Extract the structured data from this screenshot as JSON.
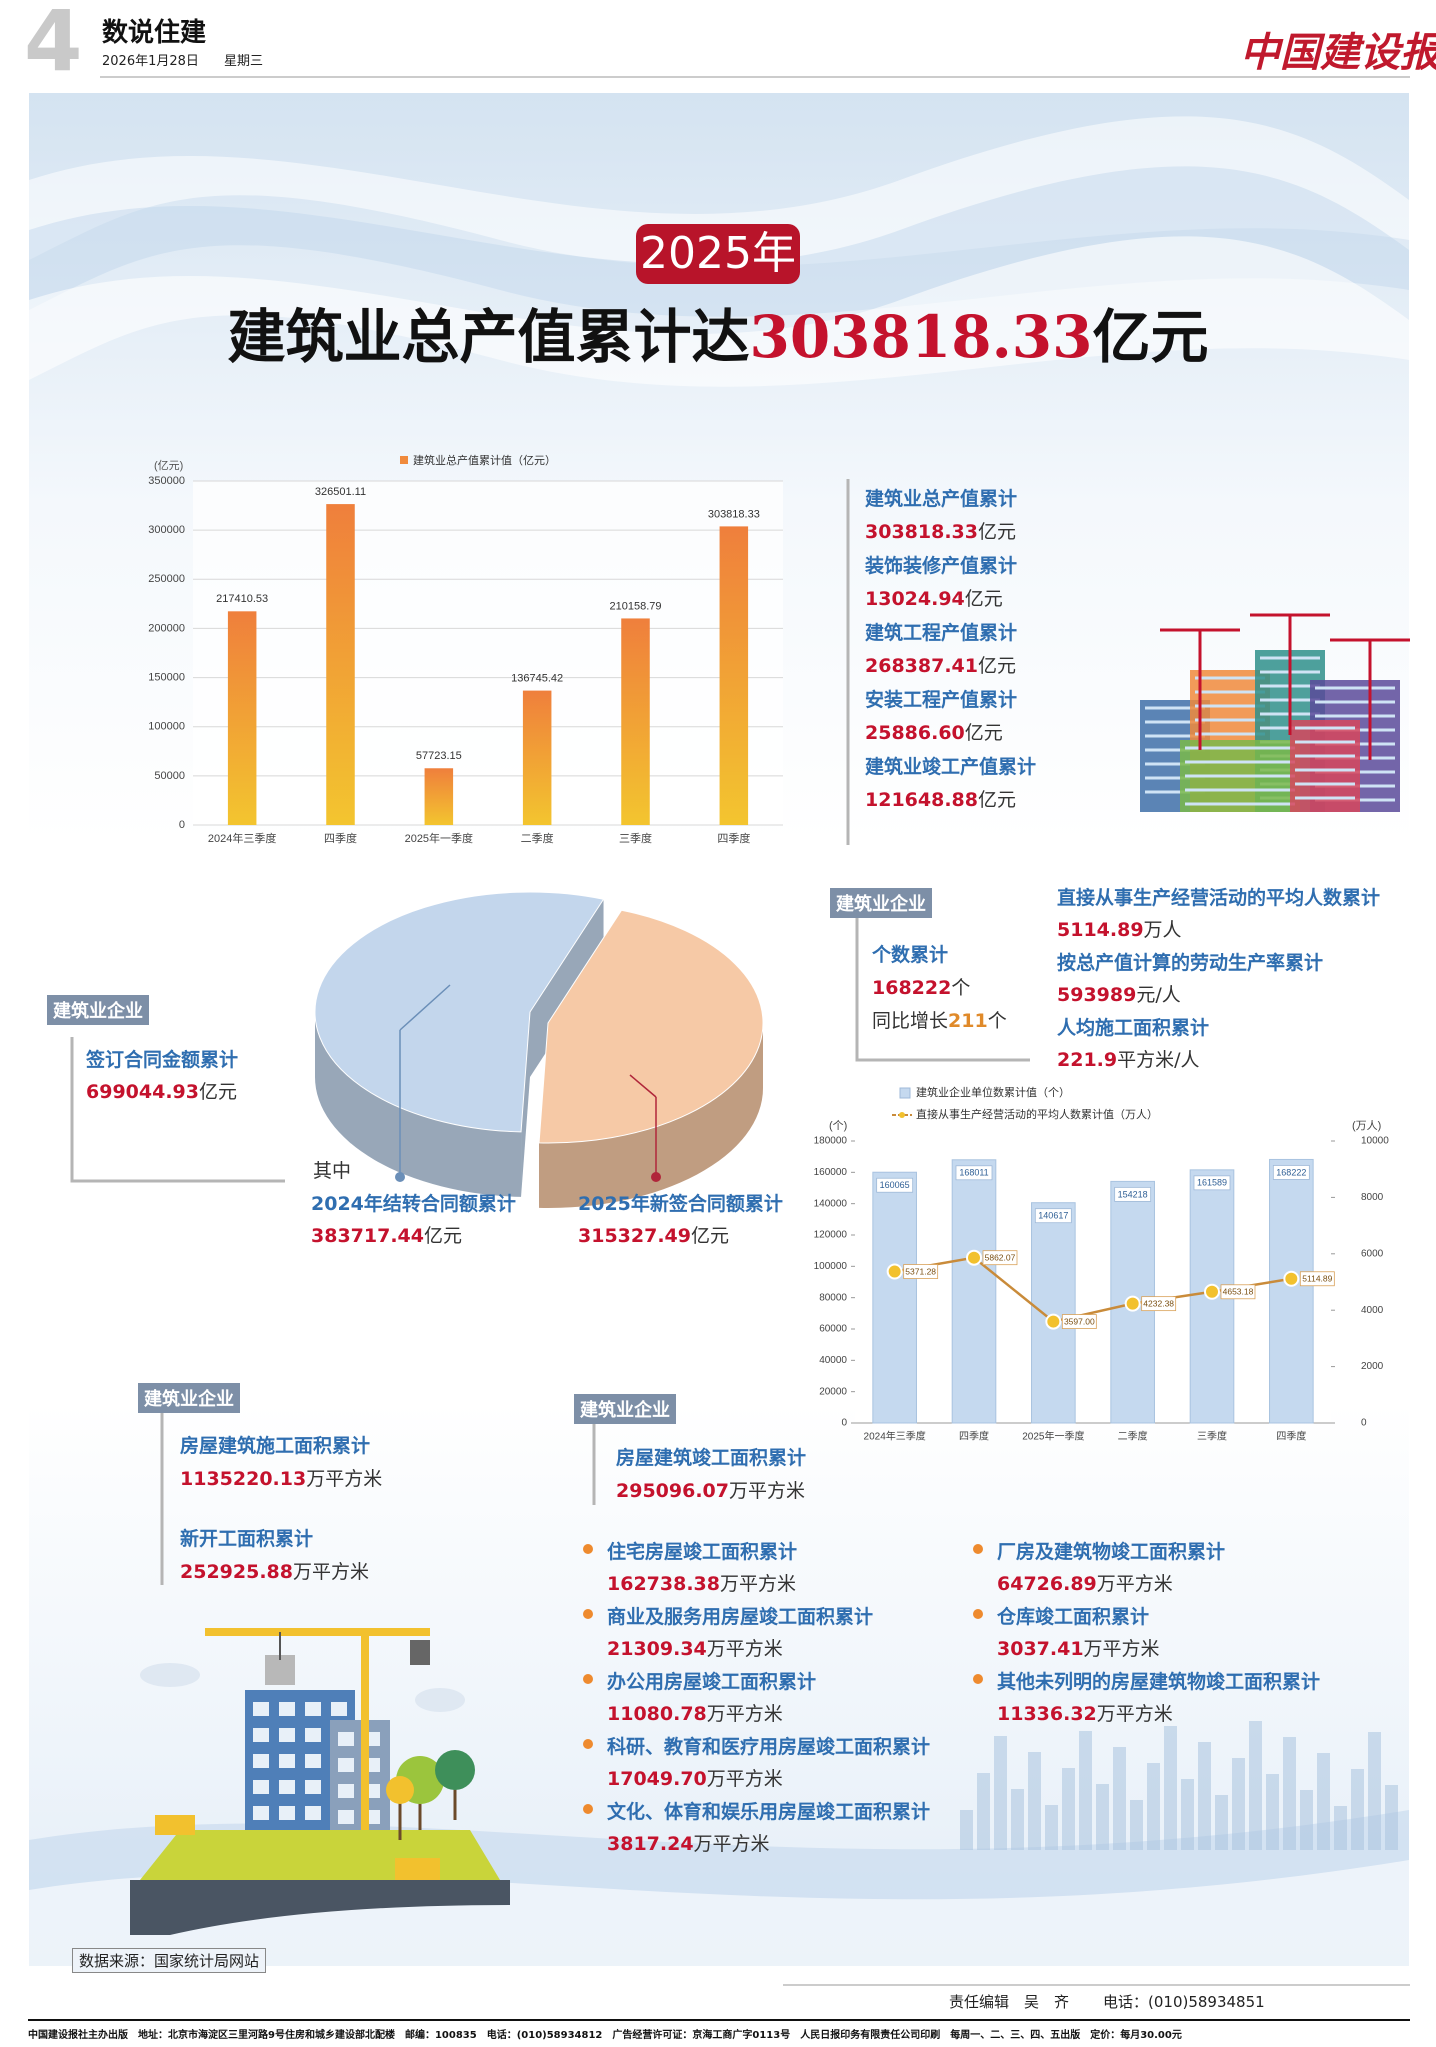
{
  "header": {
    "page_number": "4",
    "section": "数说住建",
    "date": "2026年1月28日",
    "weekday": "星期三",
    "masthead": "中国建设报"
  },
  "headline": {
    "badge": "2025年",
    "text": "建筑业总产值累计达",
    "highlight": "303818.33",
    "unit": "亿元"
  },
  "chart_data": [
    {
      "type": "bar",
      "y_label": "(亿元)",
      "categories": [
        "2024年三季度",
        "四季度",
        "2025年一季度",
        "二季度",
        "三季度",
        "四季度"
      ],
      "series": [
        {
          "name": "建筑业总产值累计值（亿元）",
          "color": "#f08a3c",
          "values": [
            217410.53,
            326501.11,
            57723.15,
            136745.42,
            210158.79,
            303818.33
          ]
        }
      ],
      "ylim": [
        0,
        350000
      ],
      "yticks": [
        0,
        50000,
        100000,
        150000,
        200000,
        250000,
        300000,
        350000
      ],
      "grid": true
    },
    {
      "type": "pie",
      "annotation": "其中",
      "labels": [
        "2024年结转合同额累计",
        "2025年新签合同额累计"
      ],
      "values": [
        383717.44,
        315327.49
      ],
      "unit": "亿元",
      "colors": [
        "#c3d6ec",
        "#f6c9a6"
      ]
    },
    {
      "type": "bar-line",
      "y_label": "(个)",
      "y2_label": "(万人)",
      "categories": [
        "2024年三季度",
        "四季度",
        "2025年一季度",
        "二季度",
        "三季度",
        "四季度"
      ],
      "series": [
        {
          "name": "建筑业企业单位数累计值（个）",
          "color": "#c5d9ef",
          "values": [
            160065,
            168011,
            140617,
            154218,
            161589,
            168222
          ]
        },
        {
          "name": "直接从事生产经营活动的平均人数累计值（万人）",
          "color": "#c98b3a",
          "axis": "y2",
          "values": [
            5371.28,
            5862.07,
            3597.0,
            4232.38,
            4653.18,
            5114.89
          ],
          "value_labels": [
            "5371.28",
            "5862.07",
            "3597.00",
            "4232.38",
            "4653.18",
            "5114.89"
          ]
        }
      ],
      "ylim": [
        0,
        180000
      ],
      "yticks": [
        0,
        20000,
        40000,
        60000,
        80000,
        100000,
        120000,
        140000,
        160000,
        180000
      ],
      "y2lim": [
        0,
        10000
      ],
      "y2ticks": [
        0,
        2000,
        4000,
        6000,
        8000,
        10000
      ]
    }
  ],
  "output_stats": [
    {
      "label": "建筑业总产值累计",
      "value": "303818.33",
      "unit": "亿元"
    },
    {
      "label": "装饰装修产值累计",
      "value": "13024.94",
      "unit": "亿元"
    },
    {
      "label": "建筑工程产值累计",
      "value": "268387.41",
      "unit": "亿元"
    },
    {
      "label": "安装工程产值累计",
      "value": "25886.60",
      "unit": "亿元"
    },
    {
      "label": "建筑业竣工产值累计",
      "value": "121648.88",
      "unit": "亿元"
    }
  ],
  "contracts": {
    "tag": "建筑业企业",
    "label": "签订合同金额累计",
    "value": "699044.93",
    "unit": "亿元"
  },
  "enterprises": {
    "tag": "建筑业企业",
    "count": {
      "label": "个数累计",
      "value": "168222",
      "unit": "个"
    },
    "growth": {
      "label": "同比增长",
      "value": "211",
      "unit": "个"
    },
    "stats": [
      {
        "label": "直接从事生产经营活动的平均人数累计",
        "value": "5114.89",
        "unit": "万人"
      },
      {
        "label": "按总产值计算的劳动生产率累计",
        "value": "593989",
        "unit": "元/人"
      },
      {
        "label": "人均施工面积累计",
        "value": "221.9",
        "unit": "平方米/人"
      }
    ]
  },
  "construction_area": {
    "tag": "建筑业企业",
    "items": [
      {
        "label": "房屋建筑施工面积累计",
        "value": "1135220.13",
        "unit": "万平方米"
      },
      {
        "label": "新开工面积累计",
        "value": "252925.88",
        "unit": "万平方米"
      }
    ]
  },
  "completed_area": {
    "tag": "建筑业企业",
    "label": "房屋建筑竣工面积累计",
    "value": "295096.07",
    "unit": "万平方米",
    "left": [
      {
        "label": "住宅房屋竣工面积累计",
        "value": "162738.38",
        "unit": "万平方米"
      },
      {
        "label": "商业及服务用房屋竣工面积累计",
        "value": "21309.34",
        "unit": "万平方米"
      },
      {
        "label": "办公用房屋竣工面积累计",
        "value": "11080.78",
        "unit": "万平方米"
      },
      {
        "label": "科研、教育和医疗用房屋竣工面积累计",
        "value": "17049.70",
        "unit": "万平方米"
      },
      {
        "label": "文化、体育和娱乐用房屋竣工面积累计",
        "value": "3817.24",
        "unit": "万平方米"
      }
    ],
    "right": [
      {
        "label": "厂房及建筑物竣工面积累计",
        "value": "64726.89",
        "unit": "万平方米"
      },
      {
        "label": "仓库竣工面积累计",
        "value": "3037.41",
        "unit": "万平方米"
      },
      {
        "label": "其他未列明的房屋建筑物竣工面积累计",
        "value": "11336.32",
        "unit": "万平方米"
      }
    ]
  },
  "source": "数据来源：国家统计局网站",
  "footer": {
    "editor": "责任编辑　吴　齐",
    "phone": "电话：(010)58934851",
    "imprint": "中国建设报社主办出版　地址：北京市海淀区三里河路9号住房和城乡建设部北配楼　邮编：100835　电话：(010)58934812　广告经营许可证：京海工商广字0113号　人民日报印务有限责任公司印刷　每周一、二、三、四、五出版　定价：每月30.00元"
  }
}
